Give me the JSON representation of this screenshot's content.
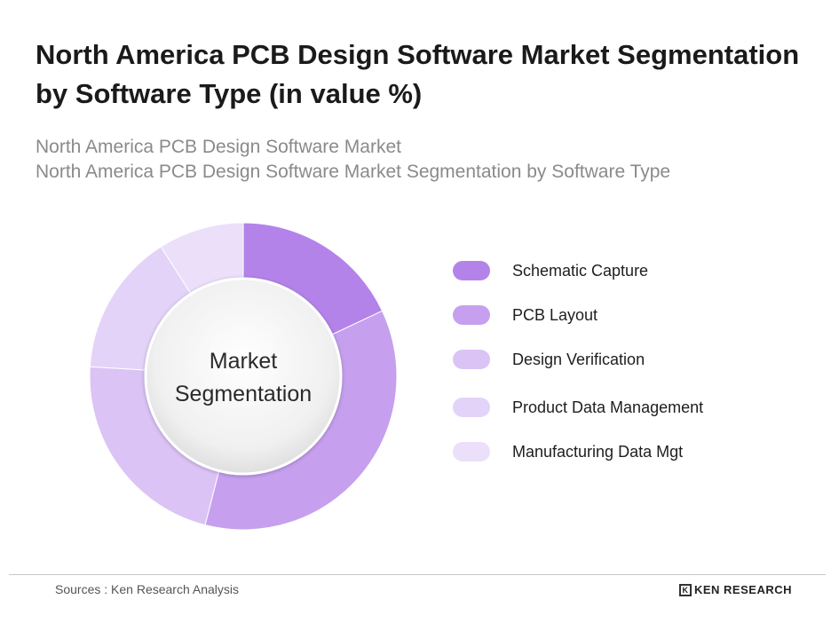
{
  "header": {
    "title": "North America PCB Design Software Market Segmentation by Software Type (in value %)",
    "subtitle_line1": "North America PCB Design Software Market",
    "subtitle_line2": "North America PCB Design Software Market Segmentation by Software Type"
  },
  "chart_data": {
    "type": "pie",
    "variant": "donut",
    "center_label_line1": "Market",
    "center_label_line2": "Segmentation",
    "categories": [
      "Schematic Capture",
      "PCB Layout",
      "Design Verification",
      "Product Data Management",
      "Manufacturing Data Mgt"
    ],
    "values": [
      18,
      36,
      22,
      15,
      9
    ],
    "colors": [
      "#b383ea",
      "#c6a0ef",
      "#dbc3f6",
      "#e4d3f8",
      "#ebdff9"
    ],
    "legend_position": "right"
  },
  "footer": {
    "source": "Sources : Ken Research Analysis",
    "brand": "KEN RESEARCH",
    "brand_icon": "K"
  }
}
